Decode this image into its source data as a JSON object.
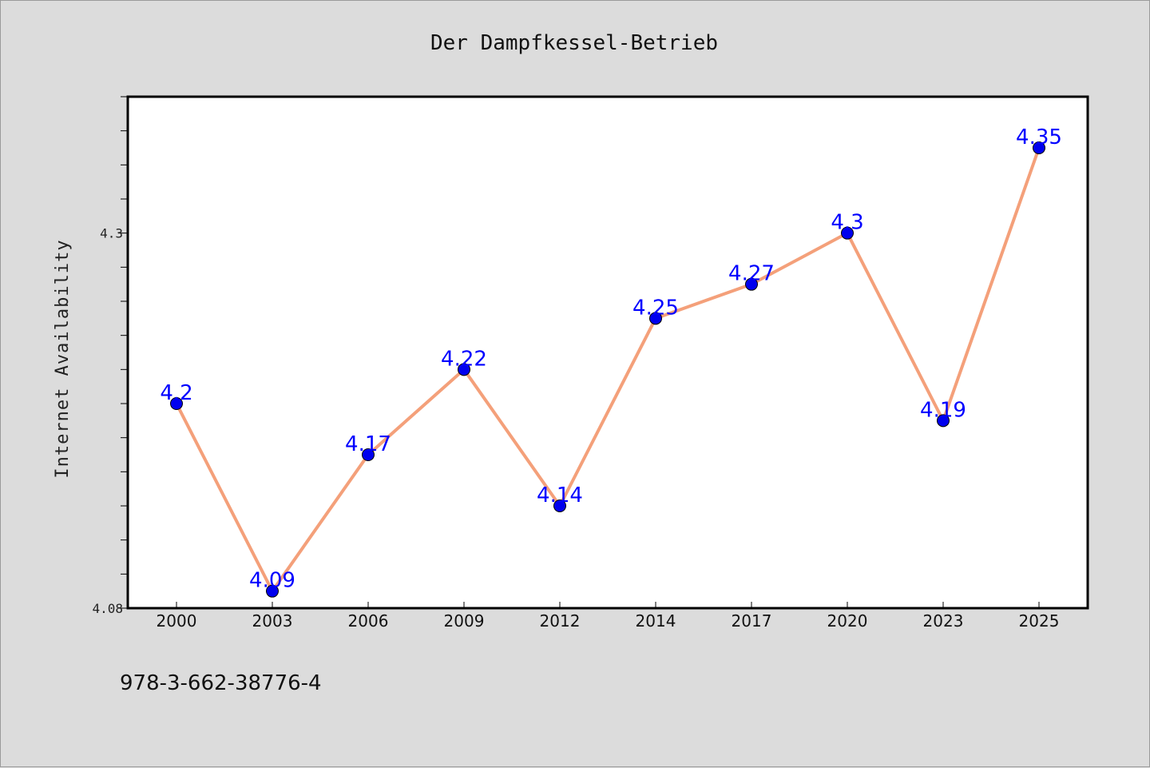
{
  "chart_data": {
    "type": "line",
    "title": "Der Dampfkessel-Betrieb",
    "xlabel": "",
    "ylabel": "Internet Availability",
    "categories": [
      "2000",
      "2003",
      "2006",
      "2009",
      "2012",
      "2014",
      "2017",
      "2020",
      "2023",
      "2025"
    ],
    "series": [
      {
        "values": [
          4.2,
          4.09,
          4.17,
          4.22,
          4.14,
          4.25,
          4.27,
          4.3,
          4.19,
          4.35
        ],
        "data_labels": [
          "4.2",
          "4.09",
          "4.17",
          "4.22",
          "4.14",
          "4.25",
          "4.27",
          "4.3",
          "4.19",
          "4.35"
        ],
        "line_color": "#f4a07a",
        "marker_color": "#0000ee"
      }
    ],
    "ylim": [
      4.08,
      4.38
    ],
    "y_tick_labels": [
      {
        "value": 4.08,
        "label": "4.08"
      },
      {
        "value": 4.3,
        "label": "4.3"
      }
    ],
    "y_minor_step": 0.02,
    "grid": false,
    "legend": "none"
  },
  "annotation": "978-3-662-38776-4",
  "colors": {
    "background": "#dcdcdc",
    "plot_background": "#ffffff",
    "data_label": "#0000ff"
  }
}
